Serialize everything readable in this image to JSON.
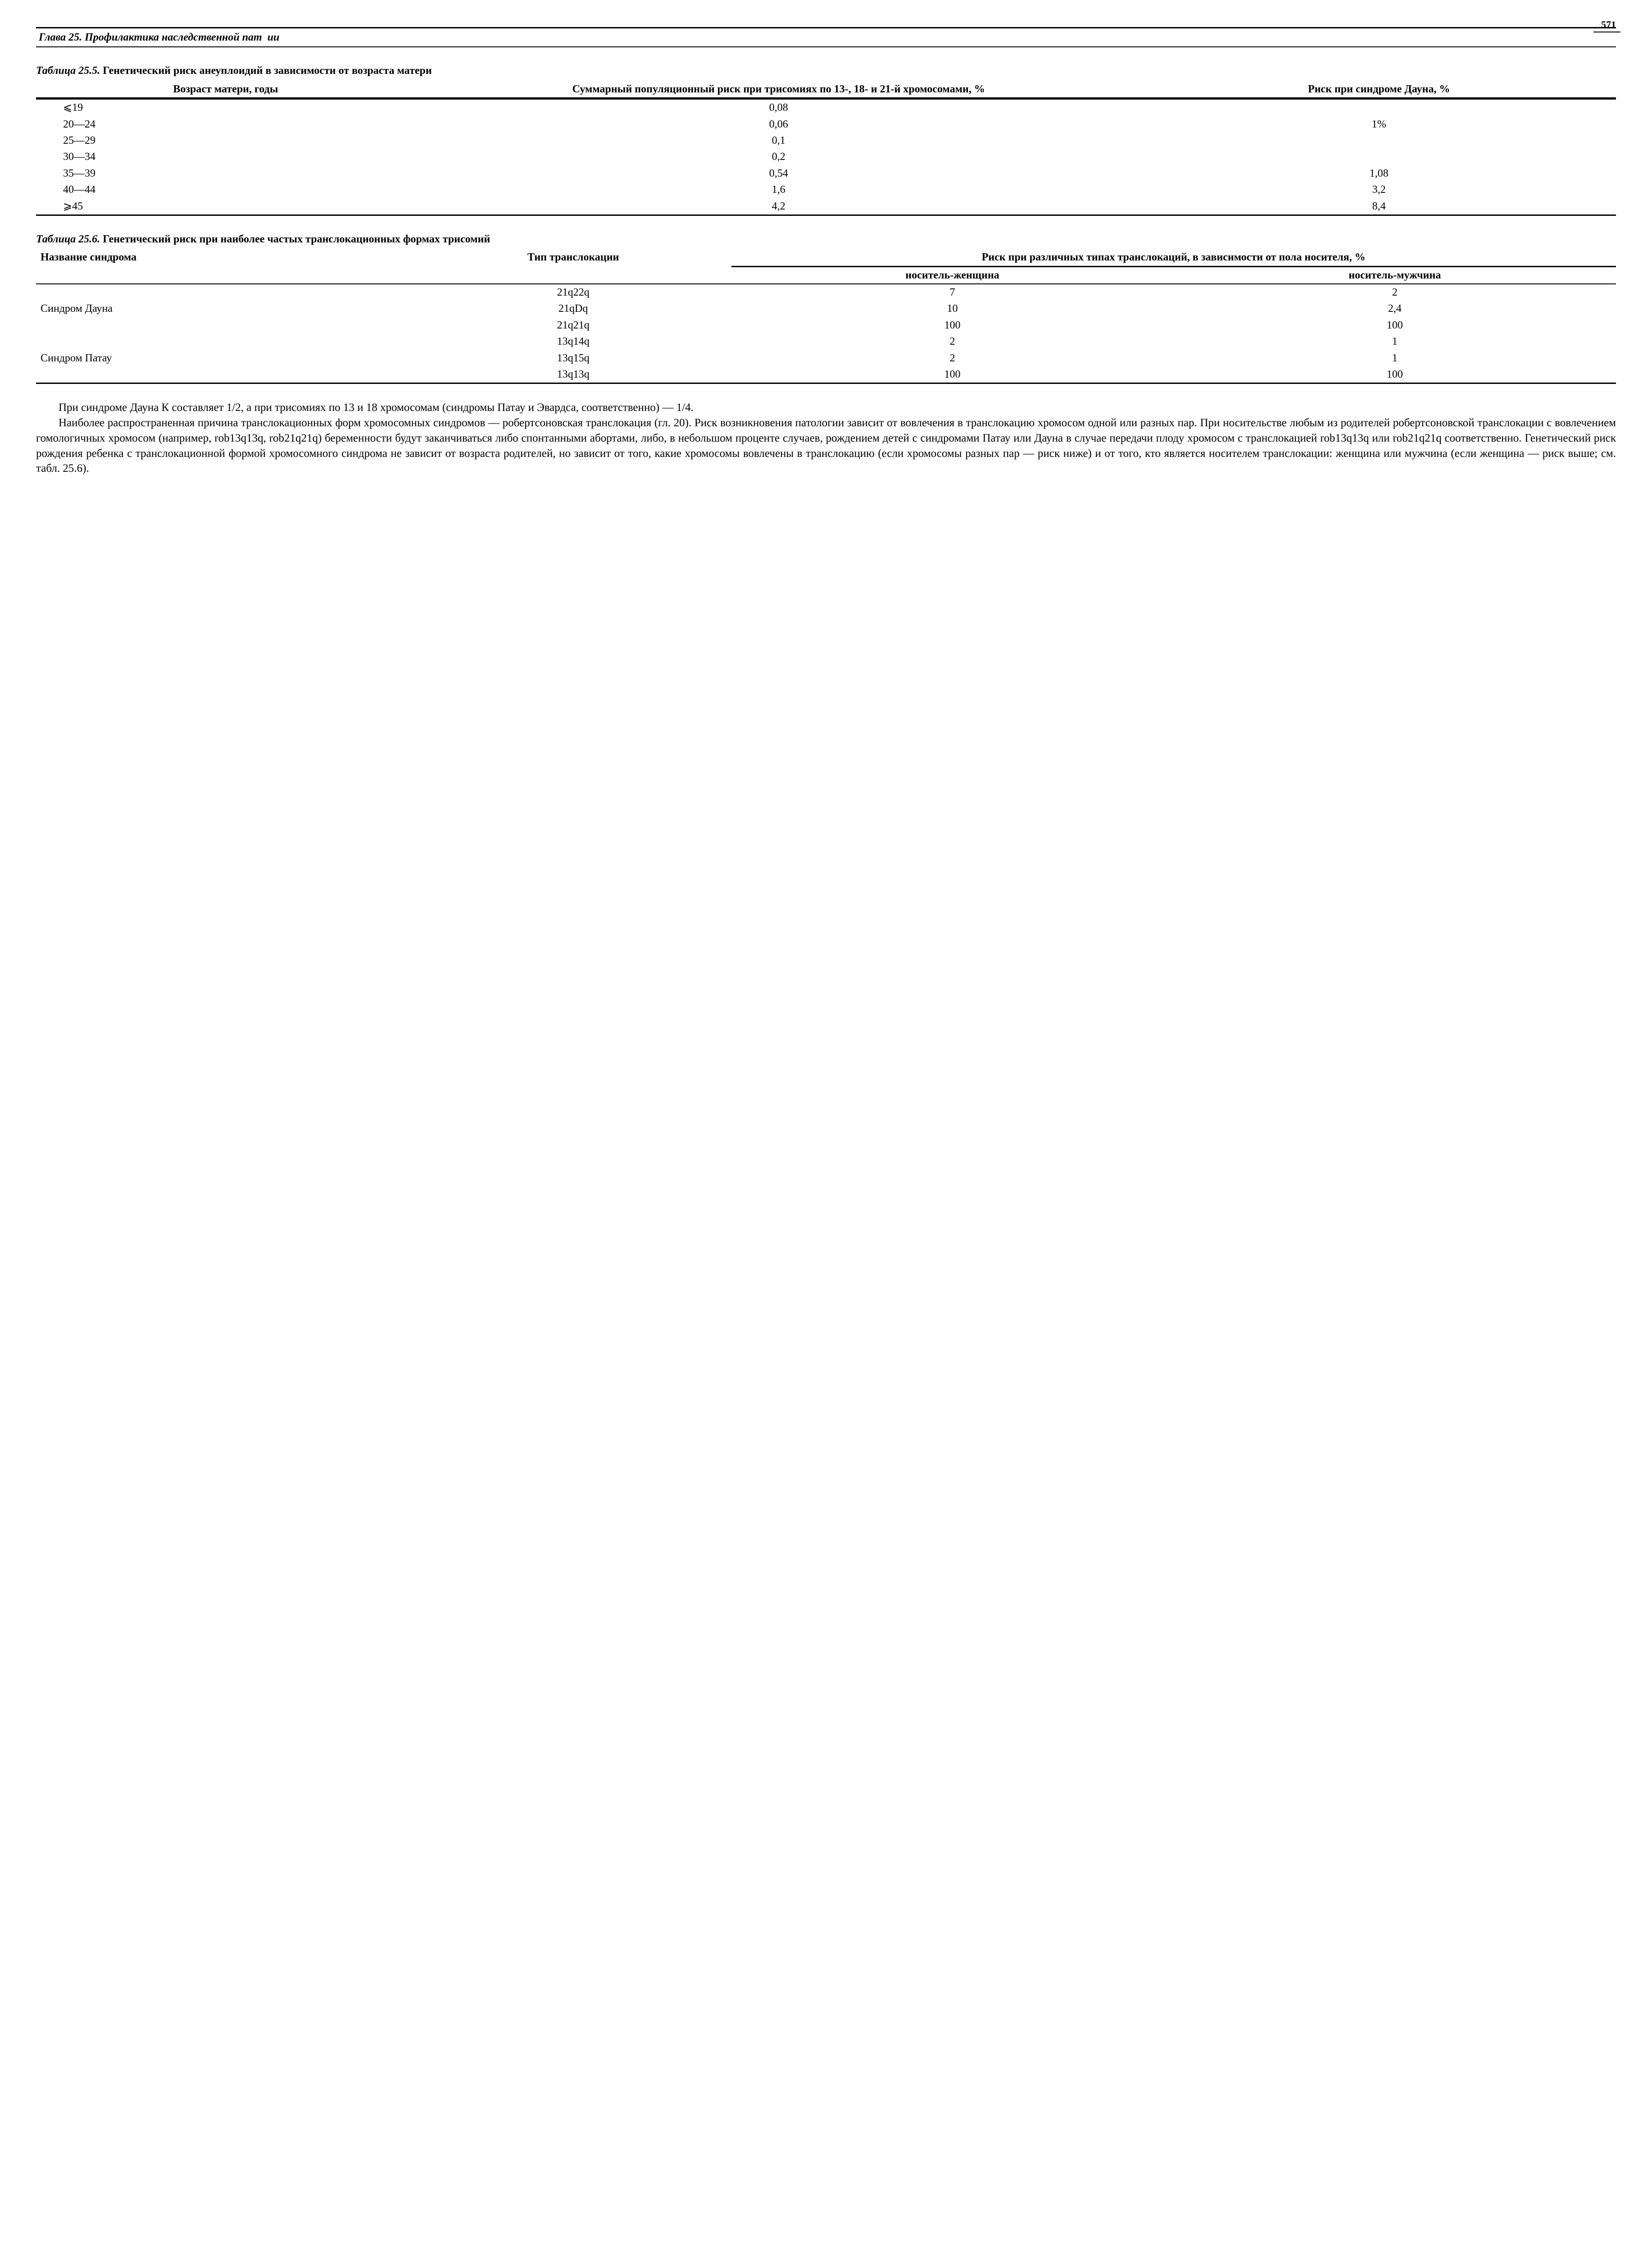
{
  "page": {
    "number": "571"
  },
  "chapter_header": {
    "left": "Глава 25. Профилактика наследственной пат",
    "mid": "ии",
    "right": ""
  },
  "table255": {
    "caption_num": "Таблица 25.5.",
    "caption_title": "Генетический риск анеуплоидий в зависимости от возраста матери",
    "col1_header": "Возраст матери, годы",
    "col2_header": "Суммарный популяционный риск при трисомиях по 13-, 18- и 21-й хромосомами, %",
    "col3_header": "Риск при синдроме Дауна, %",
    "rows": [
      {
        "age": "⩽19",
        "risk_total": "0,08",
        "risk_down": ""
      },
      {
        "age": "20—24",
        "risk_total": "0,06",
        "risk_down": "1%"
      },
      {
        "age": "25—29",
        "risk_total": "0,1",
        "risk_down": ""
      },
      {
        "age": "30—34",
        "risk_total": "0,2",
        "risk_down": ""
      },
      {
        "age": "35—39",
        "risk_total": "0,54",
        "risk_down": "1,08"
      },
      {
        "age": "40—44",
        "risk_total": "1,6",
        "risk_down": "3,2"
      },
      {
        "age": "⩾45",
        "risk_total": "4,2",
        "risk_down": "8,4"
      }
    ]
  },
  "table256": {
    "caption_num": "Таблица 25.6.",
    "caption_title": "Генетический риск при наиболее частых транслокационных формах трисомий",
    "col1_header": "Название синдрома",
    "col2_header": "Тип транслокации",
    "col34_header": "Риск при различных типах транслокаций, в зависимости от пола носителя, %",
    "col3_header": "носитель-женщина",
    "col4_header": "носитель-мужчина",
    "rows": [
      {
        "syndrome": "",
        "type": "21q22q",
        "female": "7",
        "male": "2"
      },
      {
        "syndrome": "Синдром Дауна",
        "type": "21qDq",
        "female": "10",
        "male": "2,4"
      },
      {
        "syndrome": "",
        "type": "21q21q",
        "female": "100",
        "male": "100"
      },
      {
        "syndrome": "",
        "type": "13q14q",
        "female": "2",
        "male": "1"
      },
      {
        "syndrome": "Синдром Патау",
        "type": "13q15q",
        "female": "2",
        "male": "1"
      },
      {
        "syndrome": "",
        "type": "13q13q",
        "female": "100",
        "male": "100"
      }
    ]
  },
  "body": {
    "p1": "При синдроме Дауна К составляет 1/2, а при трисомиях по 13 и 18 хромосомам (синдромы Патау и Эвардса, соответственно) — 1/4.",
    "p2": "Наиболее распространенная причина транслокационных форм хромосомных синдромов — робертсоновская транслокация (гл. 20). Риск возникновения патологии зависит от вовлечения в транслокацию хромосом одной или разных пар. При носительстве любым из родителей робертсоновской транслокации с вовлечением гомологичных хромосом (например, rob13q13q, rob21q21q) беременности будут заканчиваться либо спонтанными абортами, либо, в небольшом проценте случаев, рождением детей с синдромами Патау или Дауна в случае передачи плоду хромосом с транслокацией rob13q13q или rob21q21q соответственно. Генетический риск рождения ребенка с транслокационной формой хромосомного синдрома не зависит от возраста родителей, но зависит от того, какие хромосомы вовлечены в транслокацию (если хромосомы разных пар — риск ниже) и от того, кто является носителем транслокации: женщина или мужчина (если женщина — риск выше; см. табл. 25.6)."
  }
}
